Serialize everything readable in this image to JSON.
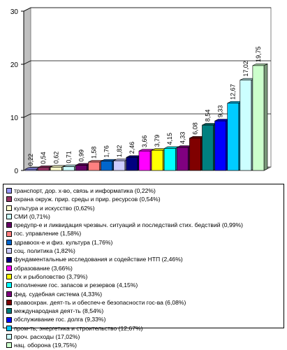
{
  "chart_data": {
    "type": "bar",
    "ylim": [
      0,
      30
    ],
    "y_ticks": [
      "0",
      "10",
      "20",
      "30"
    ],
    "grid": true,
    "legend_position": "bottom",
    "series": [
      {
        "label": "транспорт, дор. х-во, связь и информатика (0,22%)",
        "value": 0.22,
        "value_label": "0,22",
        "color": "#9999ff"
      },
      {
        "label": "охрана окруж. прир. среды и прир. ресурсов (0,54%)",
        "value": 0.54,
        "value_label": "0,54",
        "color": "#993366"
      },
      {
        "label": "культура и искусство (0,62%)",
        "value": 0.62,
        "value_label": "0,62",
        "color": "#ffffcc"
      },
      {
        "label": "СМИ (0,71%)",
        "value": 0.71,
        "value_label": "0,71",
        "color": "#ccffff"
      },
      {
        "label": "предупр-е и ликвидация чрезвыч. ситуаций и последствий стих. бедствий (0,99%)",
        "value": 0.99,
        "value_label": "0,99",
        "color": "#660066"
      },
      {
        "label": "гос. управление (1,58%)",
        "value": 1.58,
        "value_label": "1,58",
        "color": "#ff8080"
      },
      {
        "label": "здравоох-е и физ. культура (1,76%)",
        "value": 1.76,
        "value_label": "1,76",
        "color": "#0066cc"
      },
      {
        "label": "соц. политика (1,82%)",
        "value": 1.82,
        "value_label": "1,82",
        "color": "#ccccff"
      },
      {
        "label": "фундаментальные исследования и содействие НТП (2,46%)",
        "value": 2.46,
        "value_label": "2,46",
        "color": "#000080"
      },
      {
        "label": "образование (3,66%)",
        "value": 3.66,
        "value_label": "3,66",
        "color": "#ff00ff"
      },
      {
        "label": "с/х и рыболовство (3,79%)",
        "value": 3.79,
        "value_label": "3,79",
        "color": "#ffff00"
      },
      {
        "label": "пополнение гос. запасов и резервов (4,15%)",
        "value": 4.15,
        "value_label": "4,15",
        "color": "#00ffff"
      },
      {
        "label": "фед. судебная система (4,33%)",
        "value": 4.33,
        "value_label": "4,33",
        "color": "#800080"
      },
      {
        "label": "правоохран. деят-ть и обеспеч-е безопасности гос-ва (6,08%)",
        "value": 6.08,
        "value_label": "6,08",
        "color": "#800000"
      },
      {
        "label": "международная деят-ть (8,54%)",
        "value": 8.54,
        "value_label": "8,54",
        "color": "#008080"
      },
      {
        "label": "обслуживание гос. долга (9,33%)",
        "value": 9.33,
        "value_label": "9,33",
        "color": "#0000ff"
      },
      {
        "label": "пром-ть, энергетика и строительство (12,67%)",
        "value": 12.67,
        "value_label": "12,67",
        "color": "#00ccff"
      },
      {
        "label": "проч. расходы (17,02%)",
        "value": 17.02,
        "value_label": "17,02",
        "color": "#ccffff"
      },
      {
        "label": "нац. оборона (19,75%)",
        "value": 19.75,
        "value_label": "19,75",
        "color": "#ccffcc"
      }
    ]
  }
}
